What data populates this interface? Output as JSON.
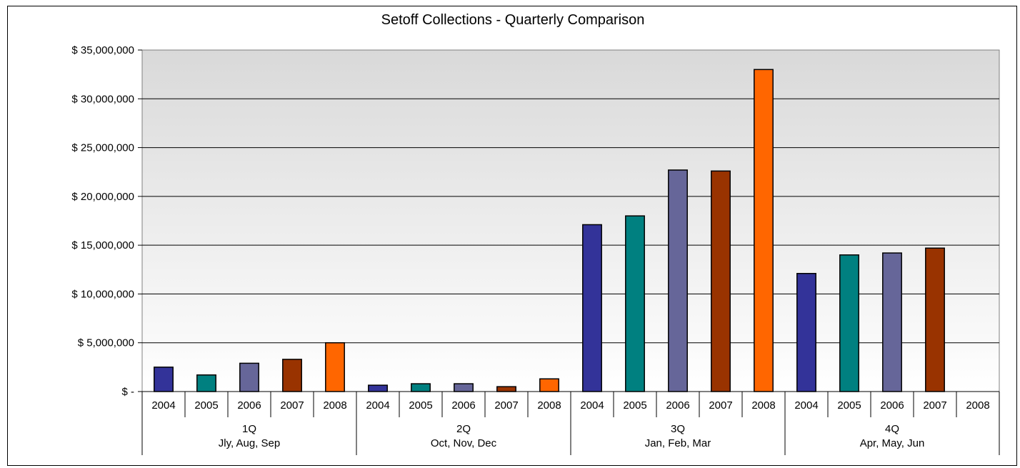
{
  "chart_data": {
    "type": "bar",
    "title": "Setoff Collections - Quarterly Comparison",
    "xlabel": "",
    "ylabel": "",
    "ylim": [
      0,
      35000000
    ],
    "y_ticks": [
      {
        "value": 0,
        "label": "$ -"
      },
      {
        "value": 5000000,
        "label": "$ 5,000,000"
      },
      {
        "value": 10000000,
        "label": "$ 10,000,000"
      },
      {
        "value": 15000000,
        "label": "$ 15,000,000"
      },
      {
        "value": 20000000,
        "label": "$ 20,000,000"
      },
      {
        "value": 25000000,
        "label": "$ 25,000,000"
      },
      {
        "value": 30000000,
        "label": "$ 30,000,000"
      },
      {
        "value": 35000000,
        "label": "$ 35,000,000"
      }
    ],
    "grid": true,
    "legend": "none",
    "groups": [
      {
        "name": "1Q",
        "months": "Jly, Aug, Sep",
        "categories": [
          "2004",
          "2005",
          "2006",
          "2007",
          "2008"
        ],
        "values": [
          2500000,
          1700000,
          2900000,
          3300000,
          5000000
        ]
      },
      {
        "name": "2Q",
        "months": "Oct, Nov, Dec",
        "categories": [
          "2004",
          "2005",
          "2006",
          "2007",
          "2008"
        ],
        "values": [
          650000,
          800000,
          800000,
          500000,
          1300000
        ]
      },
      {
        "name": "3Q",
        "months": "Jan, Feb, Mar",
        "categories": [
          "2004",
          "2005",
          "2006",
          "2007",
          "2008"
        ],
        "values": [
          17100000,
          18000000,
          22700000,
          22600000,
          33000000
        ]
      },
      {
        "name": "4Q",
        "months": "Apr, May, Jun",
        "categories": [
          "2004",
          "2005",
          "2006",
          "2007",
          "2008"
        ],
        "values": [
          12100000,
          14000000,
          14200000,
          14700000,
          0
        ]
      }
    ],
    "year_colors": {
      "2004": "#333399",
      "2005": "#008080",
      "2006": "#666699",
      "2007": "#993300",
      "2008": "#ff6600"
    }
  }
}
